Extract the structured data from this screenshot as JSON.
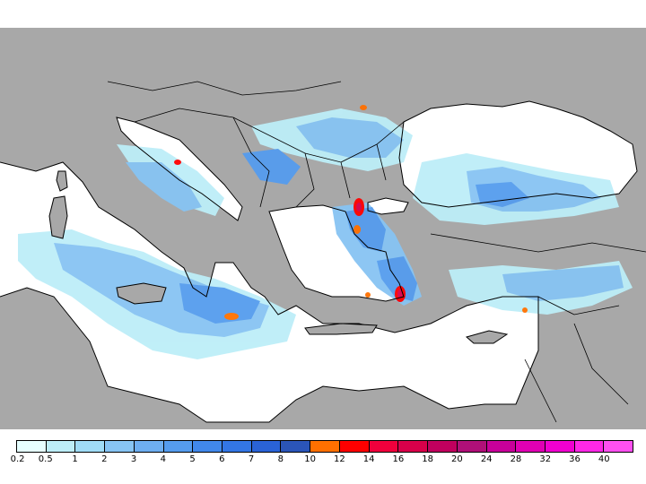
{
  "map": {
    "region": "Mediterranean and Black Sea",
    "field": "precipitation",
    "hotspots": [
      {
        "area": "northern Aegean",
        "class": "12"
      },
      {
        "area": "eastern Aegean",
        "class": "12"
      },
      {
        "area": "central Mediterranean",
        "class": "8"
      },
      {
        "area": "Sicily",
        "class": "8"
      },
      {
        "area": "Adriatic coast",
        "class": "10"
      },
      {
        "area": "Romania",
        "class": "8"
      }
    ]
  },
  "legend": {
    "labels": [
      "0.2",
      "0.5",
      "1",
      "2",
      "3",
      "4",
      "5",
      "6",
      "7",
      "8",
      "10",
      "12",
      "14",
      "16",
      "18",
      "20",
      "24",
      "28",
      "32",
      "36",
      "40"
    ],
    "colors": [
      "#e6ffff",
      "#bdeef8",
      "#a0dcf6",
      "#87c4f3",
      "#6eaef0",
      "#559cee",
      "#4188ea",
      "#3376e4",
      "#2a63d6",
      "#2b55b8",
      "#ff7000",
      "#ff0000",
      "#f0003c",
      "#d8004a",
      "#c0005e",
      "#b01078",
      "#c8009a",
      "#e000b4",
      "#f000d0",
      "#ff28e6",
      "#ff50f0"
    ]
  },
  "colors": {
    "land": "#a8a8a8",
    "sea": "#ffffff",
    "coast": "#000000"
  }
}
